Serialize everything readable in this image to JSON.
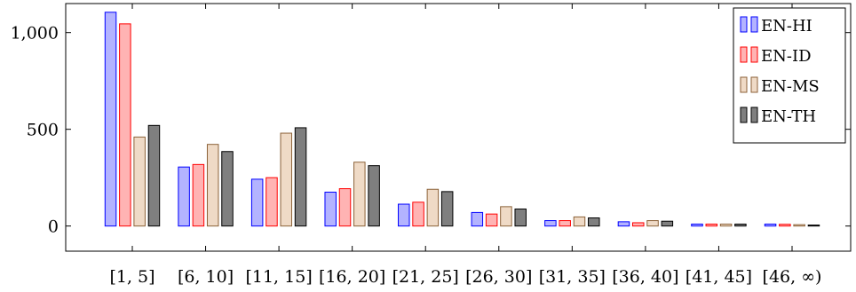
{
  "chart_data": {
    "type": "bar",
    "categories": [
      "[1, 5]",
      "[6, 10]",
      "[11, 15]",
      "[16, 20]",
      "[21, 25]",
      "[26, 30]",
      "[31, 35]",
      "[36, 40]",
      "[41, 45]",
      "[46, ∞)"
    ],
    "series": [
      {
        "name": "EN-HI",
        "values": [
          1105,
          305,
          242,
          175,
          113,
          70,
          28,
          22,
          10,
          10
        ]
      },
      {
        "name": "EN-ID",
        "values": [
          1045,
          318,
          250,
          193,
          123,
          62,
          28,
          17,
          10,
          9
        ]
      },
      {
        "name": "EN-MS",
        "values": [
          460,
          422,
          480,
          330,
          190,
          100,
          47,
          28,
          10,
          7
        ]
      },
      {
        "name": "EN-TH",
        "values": [
          520,
          385,
          508,
          312,
          178,
          88,
          42,
          25,
          10,
          5
        ]
      }
    ],
    "yticks": [
      0,
      500,
      1000
    ],
    "ytick_labels": [
      "0",
      "500",
      "1,000"
    ],
    "ylim": [
      -130,
      1150
    ],
    "grid": false,
    "legend_position": "top-right",
    "colors": {
      "EN-HI": {
        "fill": "#b3b3ff",
        "stroke": "#0000ff"
      },
      "EN-ID": {
        "fill": "#ffb3b3",
        "stroke": "#ff0000"
      },
      "EN-MS": {
        "fill": "#efdac6",
        "stroke": "#8c6239"
      },
      "EN-TH": {
        "fill": "#7f7f7f",
        "stroke": "#000000"
      }
    }
  }
}
